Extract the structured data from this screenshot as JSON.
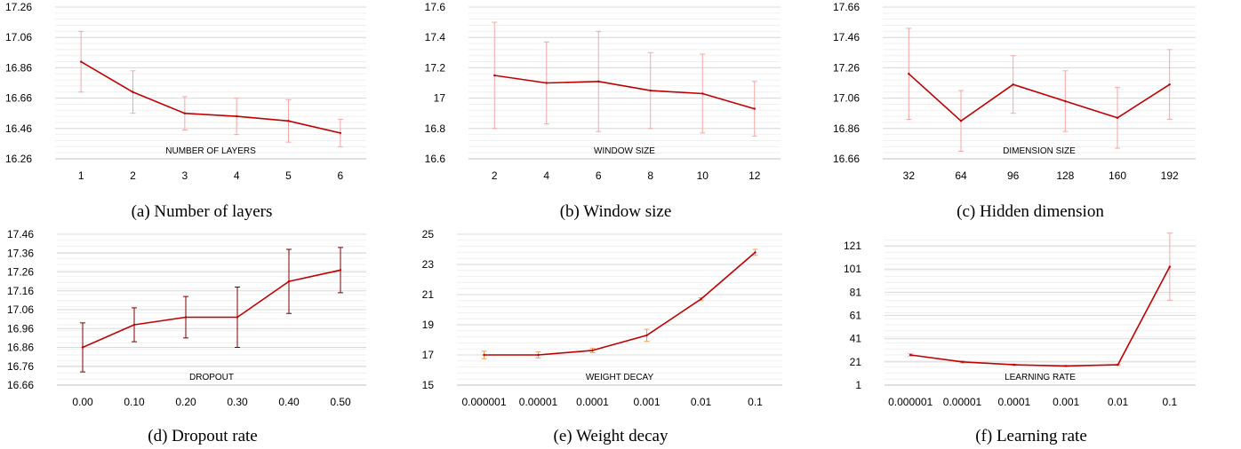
{
  "charts": [
    {
      "type": "line",
      "caption": "(a) Number of layers",
      "xlabel": "NUMBER OF LAYERS",
      "categories": [
        "1",
        "2",
        "3",
        "4",
        "5",
        "6"
      ],
      "values": [
        16.9,
        16.7,
        16.56,
        16.54,
        16.51,
        16.43
      ],
      "errors": [
        0.2,
        0.14,
        0.11,
        0.12,
        0.14,
        0.09
      ],
      "ylim": [
        16.26,
        17.26
      ],
      "yticks": [
        "16.26",
        "16.46",
        "16.66",
        "16.86",
        "17.06",
        "17.26"
      ],
      "line_color": "#c00000",
      "error_color": "#f4a6a6"
    },
    {
      "type": "line",
      "caption": "(b) Window size",
      "xlabel": "WINDOW SIZE",
      "categories": [
        "2",
        "4",
        "6",
        "8",
        "10",
        "12"
      ],
      "values": [
        17.15,
        17.1,
        17.11,
        17.05,
        17.03,
        16.93
      ],
      "errors": [
        0.35,
        0.27,
        0.33,
        0.25,
        0.26,
        0.18
      ],
      "ylim": [
        16.6,
        17.6
      ],
      "yticks": [
        "16.6",
        "16.8",
        "17",
        "17.2",
        "17.4",
        "17.6"
      ],
      "line_color": "#c00000",
      "error_color": "#f4a6a6"
    },
    {
      "type": "line",
      "caption": "(c) Hidden dimension",
      "xlabel": "DIMENSION SIZE",
      "categories": [
        "32",
        "64",
        "96",
        "128",
        "160",
        "192"
      ],
      "values": [
        17.22,
        16.91,
        17.15,
        17.04,
        16.93,
        17.15
      ],
      "errors": [
        0.3,
        0.2,
        0.19,
        0.2,
        0.2,
        0.23
      ],
      "ylim": [
        16.66,
        17.66
      ],
      "yticks": [
        "16.66",
        "16.86",
        "17.06",
        "17.26",
        "17.46",
        "17.66"
      ],
      "line_color": "#c00000",
      "error_color": "#f4a6a6"
    },
    {
      "type": "line",
      "caption": "(d) Dropout rate",
      "xlabel": "DROPOUT",
      "categories": [
        "0.00",
        "0.10",
        "0.20",
        "0.30",
        "0.40",
        "0.50"
      ],
      "values": [
        16.86,
        16.98,
        17.02,
        17.02,
        17.21,
        17.27
      ],
      "errors": [
        0.13,
        0.09,
        0.11,
        0.16,
        0.17,
        0.12
      ],
      "ylim": [
        16.66,
        17.46
      ],
      "yticks": [
        "16.66",
        "16.76",
        "16.86",
        "16.96",
        "17.06",
        "17.16",
        "17.26",
        "17.36",
        "17.46"
      ],
      "line_color": "#c00000",
      "error_color": "#7a0000"
    },
    {
      "type": "line",
      "caption": "(e) Weight decay",
      "xlabel": "WEIGHT DECAY",
      "categories": [
        "0.000001",
        "0.00001",
        "0.0001",
        "0.001",
        "0.01",
        "0.1"
      ],
      "values": [
        17.0,
        17.0,
        17.3,
        18.3,
        20.7,
        23.8
      ],
      "errors": [
        0.25,
        0.2,
        0.15,
        0.4,
        0.1,
        0.2
      ],
      "ylim": [
        15,
        25
      ],
      "yticks": [
        "15",
        "17",
        "19",
        "21",
        "23",
        "25"
      ],
      "line_color": "#c00000",
      "error_color": "#f0a050"
    },
    {
      "type": "line",
      "caption": "(f) Learning rate",
      "xlabel": "LEARNING RATE",
      "categories": [
        "0.000001",
        "0.00001",
        "0.0001",
        "0.001",
        "0.01",
        "0.1"
      ],
      "values": [
        27,
        21,
        18.5,
        17.5,
        18.5,
        103
      ],
      "errors": [
        1,
        0.8,
        0.6,
        0.5,
        0.6,
        29
      ],
      "ylim": [
        1,
        131
      ],
      "yticks": [
        "1",
        "21",
        "41",
        "61",
        "81",
        "101",
        "121"
      ],
      "line_color": "#c00000",
      "error_color": "#f4a6a6"
    }
  ]
}
